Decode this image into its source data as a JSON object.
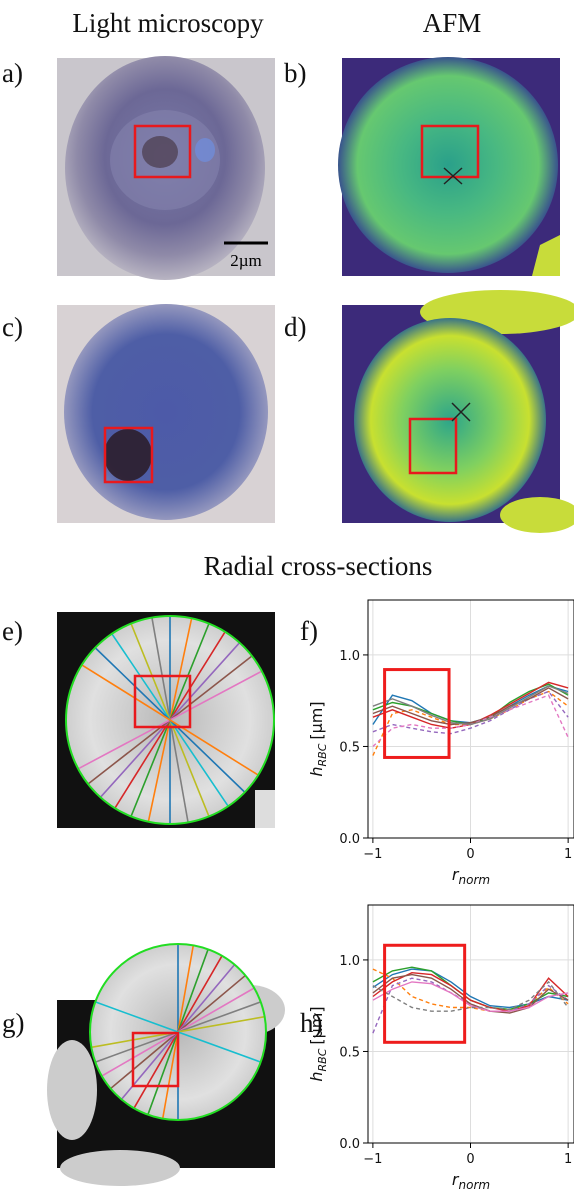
{
  "headers": {
    "light": "Light microscopy",
    "afm": "AFM",
    "radial": "Radial cross-sections"
  },
  "panels": {
    "a": "a)",
    "b": "b)",
    "c": "c)",
    "d": "d)",
    "e": "e)",
    "f": "f)",
    "g": "g)",
    "h": "h)"
  },
  "scale_bar": "2µm",
  "chart_data": [
    {
      "type": "line",
      "xlabel": {
        "main": "r",
        "sub": "norm"
      },
      "ylabel": {
        "main": "h",
        "sub": "RBC",
        "unit": "[µm]"
      },
      "x": [
        -1,
        -0.8,
        -0.6,
        -0.4,
        -0.2,
        0,
        0.2,
        0.4,
        0.6,
        0.8,
        1
      ],
      "xlim": [
        -1.05,
        1.06
      ],
      "xticks": [
        {
          "value": -1,
          "label": "−1"
        },
        0,
        1
      ],
      "ylim": [
        0,
        1.3
      ],
      "yticks": [
        {
          "value": 0,
          "label": "0.0"
        },
        0.5,
        {
          "value": 1,
          "label": "1.0"
        }
      ],
      "grid": true,
      "highlight": {
        "x": [
          -0.88,
          -0.22
        ],
        "y": [
          0.44,
          0.92
        ],
        "color": "#ee1c1c"
      },
      "series": [
        {
          "color": "#1f77b4",
          "dashed": false,
          "values": [
            0.62,
            0.78,
            0.75,
            0.68,
            0.64,
            0.63,
            0.66,
            0.72,
            0.78,
            0.83,
            0.8
          ]
        },
        {
          "color": "#ff7f0e",
          "dashed": true,
          "values": [
            0.45,
            0.68,
            0.7,
            0.66,
            0.62,
            0.62,
            0.65,
            0.7,
            0.76,
            0.8,
            0.72
          ]
        },
        {
          "color": "#2ca02c",
          "dashed": false,
          "values": [
            0.7,
            0.74,
            0.72,
            0.68,
            0.64,
            0.62,
            0.66,
            0.74,
            0.8,
            0.84,
            0.78
          ]
        },
        {
          "color": "#d62728",
          "dashed": false,
          "values": [
            0.66,
            0.7,
            0.66,
            0.62,
            0.6,
            0.62,
            0.67,
            0.73,
            0.79,
            0.85,
            0.82
          ]
        },
        {
          "color": "#9467bd",
          "dashed": true,
          "values": [
            0.58,
            0.62,
            0.6,
            0.58,
            0.57,
            0.6,
            0.64,
            0.7,
            0.76,
            0.8,
            0.66
          ]
        },
        {
          "color": "#8c564b",
          "dashed": false,
          "values": [
            0.68,
            0.72,
            0.68,
            0.64,
            0.62,
            0.63,
            0.66,
            0.72,
            0.76,
            0.82,
            0.76
          ]
        },
        {
          "color": "#e377c2",
          "dashed": true,
          "values": [
            0.5,
            0.6,
            0.62,
            0.6,
            0.6,
            0.62,
            0.66,
            0.7,
            0.74,
            0.78,
            0.55
          ]
        },
        {
          "color": "#7f7f7f",
          "dashed": false,
          "values": [
            0.72,
            0.76,
            0.72,
            0.67,
            0.63,
            0.62,
            0.65,
            0.71,
            0.77,
            0.83,
            0.79
          ]
        }
      ]
    },
    {
      "type": "line",
      "xlabel": {
        "main": "r",
        "sub": "norm"
      },
      "ylabel": {
        "main": "h",
        "sub": "RBC",
        "unit": "[µm]"
      },
      "x": [
        -1,
        -0.8,
        -0.6,
        -0.4,
        -0.2,
        0,
        0.2,
        0.4,
        0.6,
        0.8,
        1
      ],
      "xlim": [
        -1.05,
        1.06
      ],
      "xticks": [
        {
          "value": -1,
          "label": "−1"
        },
        0,
        1
      ],
      "ylim": [
        0,
        1.3
      ],
      "yticks": [
        {
          "value": 0,
          "label": "0.0"
        },
        0.5,
        {
          "value": 1,
          "label": "1.0"
        }
      ],
      "grid": true,
      "highlight": {
        "x": [
          -0.88,
          -0.06
        ],
        "y": [
          0.55,
          1.08
        ],
        "color": "#ee1c1c"
      },
      "series": [
        {
          "color": "#1f77b4",
          "dashed": false,
          "values": [
            0.85,
            0.92,
            0.95,
            0.94,
            0.88,
            0.8,
            0.75,
            0.74,
            0.76,
            0.8,
            0.78
          ]
        },
        {
          "color": "#ff7f0e",
          "dashed": true,
          "values": [
            0.95,
            0.9,
            0.8,
            0.76,
            0.74,
            0.74,
            0.72,
            0.72,
            0.76,
            0.85,
            0.76
          ]
        },
        {
          "color": "#2ca02c",
          "dashed": false,
          "values": [
            0.88,
            0.94,
            0.96,
            0.94,
            0.86,
            0.78,
            0.74,
            0.73,
            0.76,
            0.82,
            0.8
          ]
        },
        {
          "color": "#d62728",
          "dashed": false,
          "values": [
            0.8,
            0.88,
            0.93,
            0.92,
            0.86,
            0.78,
            0.74,
            0.72,
            0.75,
            0.9,
            0.8
          ]
        },
        {
          "color": "#9467bd",
          "dashed": true,
          "values": [
            0.6,
            0.86,
            0.9,
            0.88,
            0.82,
            0.76,
            0.72,
            0.72,
            0.76,
            0.86,
            0.78
          ]
        },
        {
          "color": "#8c564b",
          "dashed": false,
          "values": [
            0.82,
            0.9,
            0.92,
            0.9,
            0.84,
            0.76,
            0.72,
            0.71,
            0.74,
            0.84,
            0.78
          ]
        },
        {
          "color": "#e377c2",
          "dashed": false,
          "values": [
            0.78,
            0.84,
            0.88,
            0.87,
            0.82,
            0.75,
            0.72,
            0.72,
            0.74,
            0.8,
            0.82
          ]
        },
        {
          "color": "#7f7f7f",
          "dashed": true,
          "values": [
            0.86,
            0.8,
            0.74,
            0.72,
            0.72,
            0.74,
            0.74,
            0.73,
            0.78,
            0.88,
            0.74
          ]
        }
      ]
    }
  ]
}
